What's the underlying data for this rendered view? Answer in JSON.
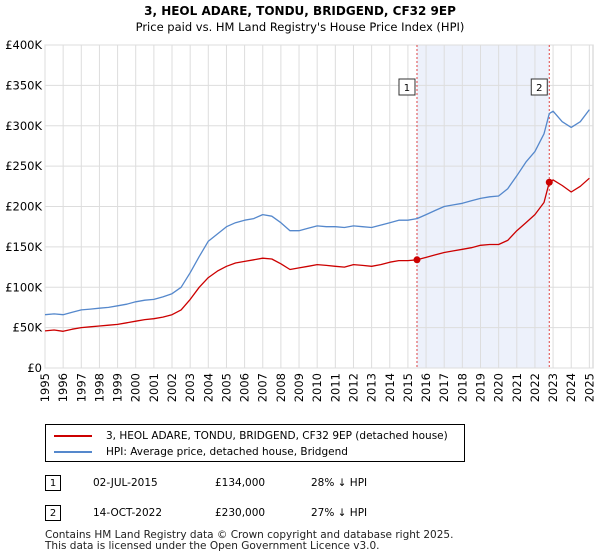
{
  "chart_data": {
    "type": "line",
    "title": "3, HEOL ADARE, TONDU, BRIDGEND, CF32 9EP",
    "subtitle": "Price paid vs. HM Land Registry's House Price Index (HPI)",
    "xlabel": "",
    "ylabel": "",
    "xlim": [
      1995.0,
      2025.2
    ],
    "ylim": [
      0,
      400000
    ],
    "grid": true,
    "x_ticks": [
      1995,
      1996,
      1997,
      1998,
      1999,
      2000,
      2001,
      2002,
      2003,
      2004,
      2005,
      2006,
      2007,
      2008,
      2009,
      2010,
      2011,
      2012,
      2013,
      2014,
      2015,
      2016,
      2017,
      2018,
      2019,
      2020,
      2021,
      2022,
      2023,
      2024,
      2025
    ],
    "y_ticks": [
      {
        "value": 0,
        "label": "£0"
      },
      {
        "value": 50000,
        "label": "£50K"
      },
      {
        "value": 100000,
        "label": "£100K"
      },
      {
        "value": 150000,
        "label": "£150K"
      },
      {
        "value": 200000,
        "label": "£200K"
      },
      {
        "value": 250000,
        "label": "£250K"
      },
      {
        "value": 300000,
        "label": "£300K"
      },
      {
        "value": 350000,
        "label": "£350K"
      },
      {
        "value": 400000,
        "label": "£400K"
      }
    ],
    "highlight_span": [
      2015.5,
      2022.79
    ],
    "series": [
      {
        "name": "3, HEOL ADARE, TONDU, BRIDGEND, CF32 9EP (detached house)",
        "color": "#cc0000",
        "x": [
          1995.0,
          1995.5,
          1996.0,
          1996.5,
          1997.0,
          1997.5,
          1998.0,
          1998.5,
          1999.0,
          1999.5,
          2000.0,
          2000.5,
          2001.0,
          2001.5,
          2002.0,
          2002.5,
          2003.0,
          2003.5,
          2004.0,
          2004.5,
          2005.0,
          2005.5,
          2006.0,
          2006.5,
          2007.0,
          2007.5,
          2008.0,
          2008.5,
          2009.0,
          2009.5,
          2010.0,
          2010.5,
          2011.0,
          2011.5,
          2012.0,
          2012.5,
          2013.0,
          2013.5,
          2014.0,
          2014.5,
          2015.0,
          2015.5,
          2016.0,
          2016.5,
          2017.0,
          2017.5,
          2018.0,
          2018.5,
          2019.0,
          2019.5,
          2020.0,
          2020.5,
          2021.0,
          2021.5,
          2022.0,
          2022.5,
          2022.79,
          2023.0,
          2023.5,
          2024.0,
          2024.5,
          2025.0
        ],
        "values": [
          46000,
          47000,
          45500,
          48000,
          50000,
          51000,
          52000,
          53000,
          54000,
          56000,
          58000,
          60000,
          61000,
          63000,
          66000,
          72000,
          85000,
          100000,
          112000,
          120000,
          126000,
          130000,
          132000,
          134000,
          136000,
          135000,
          129000,
          122000,
          124000,
          126000,
          128000,
          127000,
          126000,
          125000,
          128000,
          127000,
          126000,
          128000,
          131000,
          133000,
          133000,
          134000,
          137000,
          140000,
          143000,
          145000,
          147000,
          149000,
          152000,
          153000,
          153000,
          158000,
          170000,
          180000,
          190000,
          205000,
          230000,
          233000,
          226000,
          218000,
          225000,
          235000
        ]
      },
      {
        "name": "HPI: Average price, detached house, Bridgend",
        "color": "#5588cc",
        "x": [
          1995.0,
          1995.5,
          1996.0,
          1996.5,
          1997.0,
          1997.5,
          1998.0,
          1998.5,
          1999.0,
          1999.5,
          2000.0,
          2000.5,
          2001.0,
          2001.5,
          2002.0,
          2002.5,
          2003.0,
          2003.5,
          2004.0,
          2004.5,
          2005.0,
          2005.5,
          2006.0,
          2006.5,
          2007.0,
          2007.5,
          2008.0,
          2008.5,
          2009.0,
          2009.5,
          2010.0,
          2010.5,
          2011.0,
          2011.5,
          2012.0,
          2012.5,
          2013.0,
          2013.5,
          2014.0,
          2014.5,
          2015.0,
          2015.5,
          2016.0,
          2016.5,
          2017.0,
          2017.5,
          2018.0,
          2018.5,
          2019.0,
          2019.5,
          2020.0,
          2020.5,
          2021.0,
          2021.5,
          2022.0,
          2022.5,
          2022.79,
          2023.0,
          2023.5,
          2024.0,
          2024.5,
          2025.0
        ],
        "values": [
          66000,
          67000,
          66000,
          69000,
          72000,
          73000,
          74000,
          75000,
          77000,
          79000,
          82000,
          84000,
          85000,
          88000,
          92000,
          100000,
          118000,
          138000,
          157000,
          166000,
          175000,
          180000,
          183000,
          185000,
          190000,
          188000,
          180000,
          170000,
          170000,
          173000,
          176000,
          175000,
          175000,
          174000,
          176000,
          175000,
          174000,
          177000,
          180000,
          183000,
          183000,
          185000,
          190000,
          195000,
          200000,
          202000,
          204000,
          207000,
          210000,
          212000,
          213000,
          222000,
          238000,
          255000,
          268000,
          290000,
          315000,
          318000,
          305000,
          298000,
          305000,
          320000
        ]
      }
    ],
    "sale_points": [
      {
        "marker": "1",
        "x": 2015.5,
        "value": 134000
      },
      {
        "marker": "2",
        "x": 2022.79,
        "value": 230000
      }
    ]
  },
  "legend": {
    "property": "3, HEOL ADARE, TONDU, BRIDGEND, CF32 9EP (detached house)",
    "hpi": "HPI: Average price, detached house, Bridgend"
  },
  "transactions": [
    {
      "marker": "1",
      "date": "02-JUL-2015",
      "price": "£134,000",
      "hpi_diff": "28% ↓ HPI"
    },
    {
      "marker": "2",
      "date": "14-OCT-2022",
      "price": "£230,000",
      "hpi_diff": "27% ↓ HPI"
    }
  ],
  "footer": {
    "line1": "Contains HM Land Registry data © Crown copyright and database right 2025.",
    "line2": "This data is licensed under the Open Government Licence v3.0."
  }
}
